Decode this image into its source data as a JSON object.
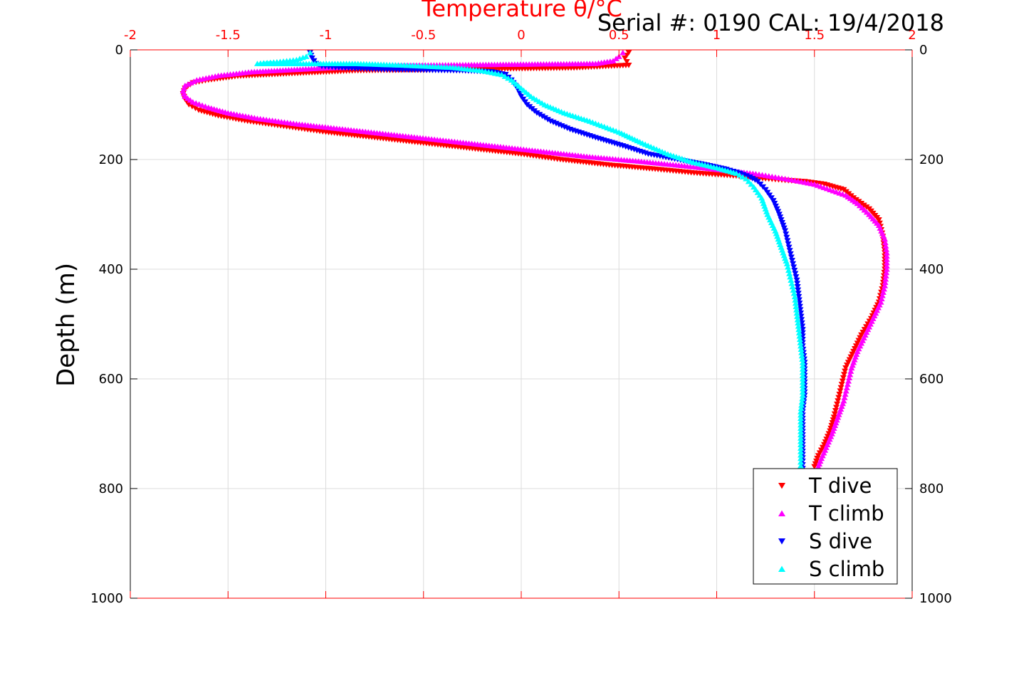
{
  "chart_data": {
    "type": "scatter",
    "title": "Serial #: 0190  CAL: 19/4/2018",
    "xlabel": "Temperature θ/°C",
    "ylabel": "Depth (m)",
    "xlim": [
      -2,
      2
    ],
    "ylim": [
      0,
      1000
    ],
    "y_inverted": true,
    "x_axis_position": "top",
    "grid": true,
    "legend_position": "bottom-right",
    "x_ticks": [
      -2,
      -1.5,
      -1,
      -0.5,
      0,
      0.5,
      1,
      1.5,
      2
    ],
    "x_tick_labels": [
      "-2",
      "-1.5",
      "-1",
      "-0.5",
      "0",
      "0.5",
      "1",
      "1.5",
      "2"
    ],
    "y_ticks": [
      0,
      200,
      400,
      600,
      800,
      1000
    ],
    "y_tick_labels": [
      "0",
      "200",
      "400",
      "600",
      "800",
      "1000"
    ],
    "colors": {
      "axis_x": "#ff0000",
      "axis_y": "#000000",
      "grid": "#dcdcdc"
    },
    "series": [
      {
        "name": "T dive",
        "color": "#ff0000",
        "marker": "triangle-down",
        "x": [
          0.55,
          0.53,
          0.55,
          0.27,
          -0.85,
          -1.1,
          -1.45,
          -1.6,
          -1.68,
          -1.72,
          -1.73,
          -1.72,
          -1.7,
          -1.65,
          -1.55,
          -1.4,
          -1.2,
          -1.0,
          -0.75,
          -0.5,
          -0.25,
          0.0,
          0.2,
          0.45,
          0.7,
          0.9,
          1.1,
          1.25,
          1.35,
          1.45,
          1.55,
          1.65,
          1.7,
          1.78,
          1.83,
          1.85,
          1.86,
          1.86,
          1.85,
          1.83,
          1.79,
          1.74,
          1.7,
          1.66,
          1.64,
          1.62,
          1.6,
          1.58,
          1.55,
          1.52,
          1.5,
          1.49
        ],
        "y": [
          5,
          15,
          28,
          33,
          38,
          42,
          48,
          55,
          60,
          70,
          80,
          90,
          100,
          110,
          120,
          130,
          140,
          150,
          160,
          170,
          180,
          190,
          200,
          210,
          218,
          225,
          230,
          235,
          238,
          240,
          245,
          255,
          270,
          290,
          310,
          340,
          370,
          400,
          430,
          460,
          490,
          520,
          550,
          580,
          610,
          640,
          670,
          695,
          720,
          740,
          760,
          775
        ]
      },
      {
        "name": "T climb",
        "color": "#ff00ff",
        "marker": "triangle-up",
        "x": [
          0.52,
          0.5,
          0.47,
          0.38,
          -0.55,
          -1.0,
          -1.38,
          -1.55,
          -1.66,
          -1.72,
          -1.73,
          -1.72,
          -1.68,
          -1.6,
          -1.5,
          -1.35,
          -1.15,
          -0.9,
          -0.65,
          -0.4,
          -0.15,
          0.1,
          0.35,
          0.6,
          0.85,
          1.05,
          1.2,
          1.3,
          1.4,
          1.5,
          1.58,
          1.66,
          1.72,
          1.78,
          1.83,
          1.86,
          1.87,
          1.87,
          1.86,
          1.84,
          1.8,
          1.76,
          1.72,
          1.69,
          1.67,
          1.65,
          1.62,
          1.59,
          1.56,
          1.53,
          1.51
        ],
        "y": [
          5,
          12,
          20,
          25,
          28,
          33,
          40,
          47,
          55,
          65,
          75,
          85,
          95,
          105,
          115,
          125,
          135,
          145,
          155,
          165,
          175,
          185,
          195,
          203,
          212,
          220,
          226,
          232,
          238,
          245,
          255,
          265,
          280,
          300,
          320,
          345,
          370,
          400,
          430,
          460,
          490,
          520,
          550,
          580,
          610,
          640,
          670,
          700,
          725,
          750,
          770
        ]
      },
      {
        "name": "S dive",
        "color": "#0000ff",
        "marker": "triangle-down",
        "x": [
          -1.08,
          -1.07,
          -1.05,
          -1.02,
          -0.95,
          -0.85,
          -0.7,
          -0.5,
          -0.3,
          -0.15,
          -0.08,
          -0.05,
          -0.02,
          0.0,
          0.03,
          0.08,
          0.15,
          0.25,
          0.38,
          0.52,
          0.65,
          0.8,
          0.95,
          1.05,
          1.12,
          1.17,
          1.21,
          1.25,
          1.29,
          1.32,
          1.35,
          1.37,
          1.39,
          1.41,
          1.42,
          1.43,
          1.44,
          1.44,
          1.45,
          1.45,
          1.45,
          1.44,
          1.44,
          1.44,
          1.44,
          1.44
        ],
        "y": [
          5,
          15,
          25,
          30,
          32,
          34,
          36,
          37,
          38,
          40,
          45,
          55,
          70,
          85,
          100,
          115,
          130,
          145,
          160,
          175,
          190,
          200,
          210,
          218,
          225,
          232,
          240,
          255,
          275,
          300,
          330,
          360,
          390,
          420,
          450,
          480,
          510,
          540,
          570,
          600,
          630,
          660,
          690,
          720,
          750,
          770
        ]
      },
      {
        "name": "S climb",
        "color": "#00ffff",
        "marker": "triangle-up",
        "x": [
          -1.08,
          -1.1,
          -1.15,
          -1.25,
          -1.35,
          -0.85,
          -0.6,
          -0.35,
          -0.2,
          -0.1,
          -0.05,
          0.0,
          0.05,
          0.12,
          0.22,
          0.35,
          0.5,
          0.62,
          0.75,
          0.88,
          1.0,
          1.1,
          1.15,
          1.19,
          1.23,
          1.26,
          1.3,
          1.33,
          1.36,
          1.38,
          1.4,
          1.41,
          1.42,
          1.43,
          1.44,
          1.44,
          1.44,
          1.43,
          1.43,
          1.43,
          1.43,
          1.43,
          1.43
        ],
        "y": [
          5,
          12,
          18,
          22,
          25,
          25,
          28,
          32,
          38,
          45,
          55,
          70,
          85,
          100,
          115,
          130,
          150,
          170,
          190,
          205,
          215,
          225,
          235,
          250,
          270,
          300,
          330,
          360,
          390,
          420,
          450,
          480,
          510,
          540,
          570,
          600,
          630,
          660,
          690,
          720,
          745,
          765,
          775
        ]
      }
    ]
  }
}
